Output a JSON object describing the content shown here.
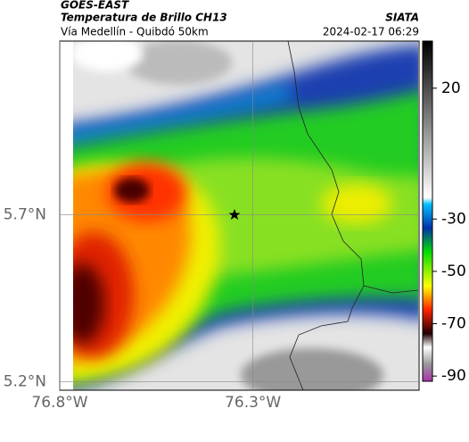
{
  "header": {
    "source": "GOES-EAST",
    "title": "Temperatura de Brillo CH13",
    "org": "SIATA",
    "route": "Vía Medellín - Quibdó 50km",
    "timestamp": "2024-02-17 06:29"
  },
  "map": {
    "xlim": [
      -76.8,
      -75.87
    ],
    "ylim": [
      5.175,
      6.22
    ],
    "xticks": [
      {
        "value": -76.8,
        "label": "76.8°W"
      },
      {
        "value": -76.3,
        "label": "76.3°W"
      }
    ],
    "yticks": [
      {
        "value": 5.2,
        "label": "5.2°N"
      },
      {
        "value": 5.7,
        "label": "5.7°N"
      }
    ]
  },
  "colorbar": {
    "lim": [
      38,
      -92
    ],
    "ticks": [
      20,
      -30,
      -50,
      -70,
      -90
    ]
  }
}
